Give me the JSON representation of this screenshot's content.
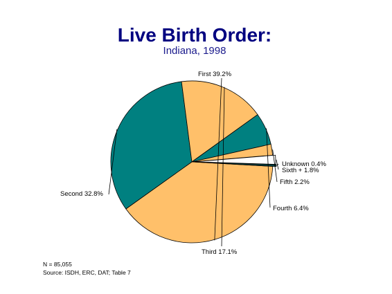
{
  "chart_data": {
    "type": "pie",
    "title": "Live Birth Order:",
    "subtitle": "Indiana, 1998",
    "slices": [
      {
        "label": "First",
        "value": 39.2,
        "value_text": "39.2%",
        "color": "#FFC06A"
      },
      {
        "label": "Second",
        "value": 32.8,
        "value_text": "32.8%",
        "color": "#008080"
      },
      {
        "label": "Third",
        "value": 17.1,
        "value_text": "17.1%",
        "color": "#FFC06A"
      },
      {
        "label": "Fourth",
        "value": 6.4,
        "value_text": "6.4%",
        "color": "#008080"
      },
      {
        "label": "Fifth",
        "value": 2.2,
        "value_text": "2.2%",
        "color": "#FFC06A"
      },
      {
        "label": "Sixth +",
        "value": 1.8,
        "value_text": "1.8%",
        "color": "#FFFFFF"
      },
      {
        "label": "Unknown",
        "value": 0.4,
        "value_text": "0.4%",
        "color": "#004040"
      }
    ],
    "footnotes": {
      "n": "N = 85,055",
      "source": "Source:  ISDH, ERC, DAT; Table 7"
    }
  }
}
